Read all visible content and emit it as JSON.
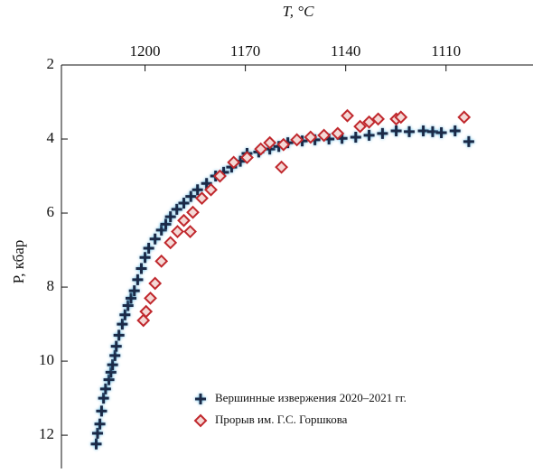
{
  "chart_data": {
    "type": "scatter",
    "x_label": "T, °C",
    "y_label": "P, кбар",
    "xlim": [
      1225,
      1084
    ],
    "ylim": [
      2,
      12.9
    ],
    "xticks": [
      1200,
      1170,
      1140,
      1110
    ],
    "yticks": [
      2,
      4,
      6,
      8,
      10,
      12
    ],
    "legend": "lower right",
    "series": [
      {
        "name": "Вершинные извержения 2020–2021 гг.",
        "color": "#1b2a48",
        "marker": "cross",
        "x": [
          1214.6,
          1214.2,
          1213.5,
          1213.0,
          1212.4,
          1211.8,
          1210.8,
          1210.2,
          1209.7,
          1209.0,
          1208.6,
          1207.8,
          1206.8,
          1206.0,
          1205.1,
          1204.2,
          1203.2,
          1202.2,
          1201.1,
          1200.0,
          1198.9,
          1197.0,
          1195.1,
          1193.8,
          1192.4,
          1190.5,
          1188.4,
          1186.3,
          1184.3,
          1181.6,
          1178.9,
          1176.5,
          1174.1,
          1171.5,
          1169.5,
          1166.0,
          1162.7,
          1160.0,
          1157.3,
          1153.0,
          1149.2,
          1145.0,
          1141.1,
          1137.0,
          1133.0,
          1129.0,
          1124.9,
          1121.0,
          1116.8,
          1114.0,
          1111.4,
          1107.3,
          1103.2
        ],
        "y": [
          12.24,
          11.95,
          11.7,
          11.35,
          11.0,
          10.75,
          10.5,
          10.3,
          10.1,
          9.85,
          9.6,
          9.3,
          9.0,
          8.75,
          8.5,
          8.3,
          8.1,
          7.8,
          7.5,
          7.2,
          6.95,
          6.7,
          6.46,
          6.3,
          6.1,
          5.9,
          5.73,
          5.55,
          5.37,
          5.2,
          5.0,
          4.9,
          4.76,
          4.6,
          4.39,
          4.35,
          4.27,
          4.2,
          4.1,
          4.05,
          4.02,
          4.0,
          3.98,
          3.95,
          3.9,
          3.85,
          3.78,
          3.8,
          3.78,
          3.8,
          3.83,
          3.78,
          4.07
        ]
      },
      {
        "name": "Прорыв им. Г.С. Горшкова",
        "color": "#c0282d",
        "marker": "diamond",
        "x": [
          1200.5,
          1199.7,
          1198.4,
          1197.0,
          1195.1,
          1192.4,
          1190.3,
          1188.4,
          1185.7,
          1183.0,
          1180.3,
          1177.6,
          1173.5,
          1169.5,
          1165.4,
          1162.7,
          1159.2,
          1158.6,
          1154.6,
          1150.5,
          1146.5,
          1142.4,
          1139.5,
          1135.7,
          1133.0,
          1130.3,
          1124.9,
          1123.5,
          1104.6,
          1186.5
        ],
        "y": [
          8.9,
          8.66,
          8.3,
          7.9,
          7.3,
          6.8,
          6.5,
          6.2,
          5.98,
          5.6,
          5.37,
          5.0,
          4.63,
          4.5,
          4.27,
          4.1,
          4.76,
          4.15,
          4.02,
          3.95,
          3.9,
          3.85,
          3.37,
          3.66,
          3.54,
          3.46,
          3.46,
          3.41,
          3.41,
          6.5
        ]
      }
    ]
  }
}
